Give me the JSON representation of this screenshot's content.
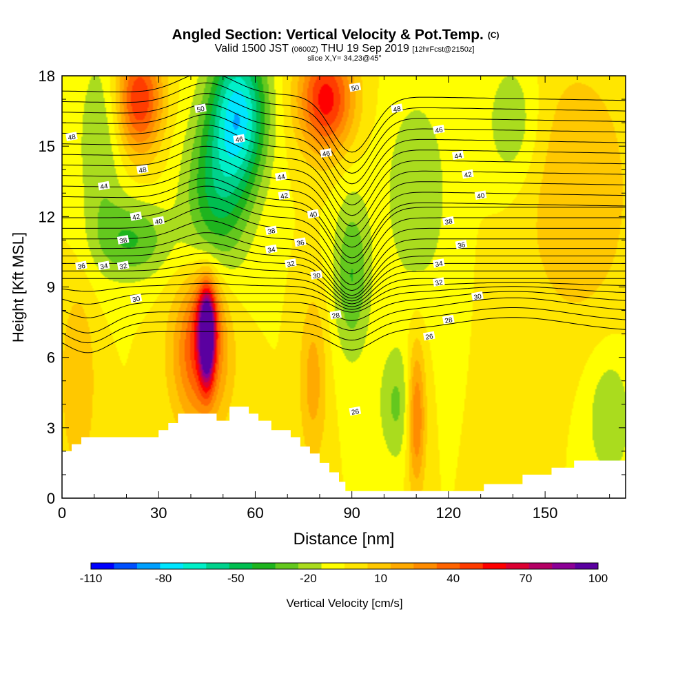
{
  "chart_data": {
    "type": "heatmap",
    "title": "Angled Section: Vertical Velocity & Pot.Temp.",
    "title_suffix": "(C)",
    "subtitle_valid": "Valid 1500 JST",
    "subtitle_z": "(0600Z)",
    "subtitle_date": "THU 19 Sep 2019",
    "subtitle_fcst": "[12hrFcst@2150z]",
    "slice": "slice X,Y= 34,23@45°",
    "xlabel": "Distance [nm]",
    "ylabel": "Height [Kft MSL]",
    "xlim": [
      0,
      175
    ],
    "ylim": [
      0,
      18
    ],
    "xticks": [
      0,
      30,
      60,
      90,
      120,
      150
    ],
    "yticks": [
      0,
      3,
      6,
      9,
      12,
      15,
      18
    ],
    "colorbar": {
      "label": "Vertical Velocity [cm/s]",
      "ticks": [
        -110,
        -80,
        -50,
        -20,
        10,
        40,
        70,
        100
      ],
      "bins": [
        -110,
        -100,
        -90,
        -80,
        -70,
        -60,
        -50,
        -40,
        -30,
        -20,
        -10,
        0,
        10,
        20,
        30,
        40,
        50,
        60,
        70,
        80,
        90,
        100
      ],
      "colors": [
        "#0000ff",
        "#0050ff",
        "#00a0ff",
        "#00e6ff",
        "#00f0c8",
        "#00d28c",
        "#00be50",
        "#1eb41e",
        "#64c81e",
        "#aadc1e",
        "#ffff00",
        "#ffe600",
        "#ffc800",
        "#ffaa00",
        "#ff8c00",
        "#ff6400",
        "#ff3c00",
        "#ff0000",
        "#dc0032",
        "#b40064",
        "#8c0096",
        "#5a00a0"
      ]
    },
    "velocity_features": [
      {
        "x": 45,
        "y": 6.8,
        "value": 100,
        "sx": 1.6,
        "sy": 1.3
      },
      {
        "x": 43,
        "y": 6.2,
        "value": 55,
        "sx": 6,
        "sy": 2.2
      },
      {
        "x": 45,
        "y": 8,
        "value": 30,
        "sx": 3,
        "sy": 1.2
      },
      {
        "x": 110,
        "y": 3.5,
        "value": 45,
        "sx": 2,
        "sy": 2.2
      },
      {
        "x": 104,
        "y": 4,
        "value": -22,
        "sx": 4,
        "sy": 1.8
      },
      {
        "x": 24,
        "y": 17,
        "value": 60,
        "sx": 5,
        "sy": 1.6
      },
      {
        "x": 82,
        "y": 17,
        "value": 65,
        "sx": 6,
        "sy": 1.6
      },
      {
        "x": 55,
        "y": 16.5,
        "value": -70,
        "sx": 6,
        "sy": 2.2
      },
      {
        "x": 48,
        "y": 13,
        "value": -40,
        "sx": 7,
        "sy": 2.5
      },
      {
        "x": 22,
        "y": 11,
        "value": -30,
        "sx": 8,
        "sy": 1.2
      },
      {
        "x": 12,
        "y": 15,
        "value": -20,
        "sx": 5,
        "sy": 3
      },
      {
        "x": 90,
        "y": 9.5,
        "value": -30,
        "sx": 4,
        "sy": 2.5
      },
      {
        "x": 110,
        "y": 13,
        "value": -20,
        "sx": 7,
        "sy": 3
      },
      {
        "x": 140,
        "y": 16,
        "value": -20,
        "sx": 6,
        "sy": 2
      },
      {
        "x": 170,
        "y": 3.5,
        "value": -20,
        "sx": 5,
        "sy": 2
      },
      {
        "x": 78,
        "y": 5,
        "value": 25,
        "sx": 3,
        "sy": 2.5
      },
      {
        "x": 160,
        "y": 13,
        "value": 20,
        "sx": 12,
        "sy": 4
      },
      {
        "x": 5,
        "y": 5,
        "value": 20,
        "sx": 4,
        "sy": 3
      }
    ],
    "terrain": [
      [
        0,
        2
      ],
      [
        3,
        2
      ],
      [
        3,
        2.3
      ],
      [
        6,
        2.3
      ],
      [
        6,
        2.6
      ],
      [
        10,
        2.6
      ],
      [
        10,
        2.6
      ],
      [
        30,
        2.6
      ],
      [
        30,
        2.9
      ],
      [
        33,
        2.9
      ],
      [
        33,
        3.2
      ],
      [
        36,
        3.2
      ],
      [
        36,
        3.6
      ],
      [
        48,
        3.6
      ],
      [
        48,
        3.3
      ],
      [
        52,
        3.3
      ],
      [
        52,
        3.9
      ],
      [
        58,
        3.9
      ],
      [
        58,
        3.6
      ],
      [
        61,
        3.6
      ],
      [
        61,
        3.3
      ],
      [
        65,
        3.3
      ],
      [
        65,
        2.9
      ],
      [
        71,
        2.9
      ],
      [
        71,
        2.6
      ],
      [
        74,
        2.6
      ],
      [
        74,
        2.2
      ],
      [
        77,
        2.2
      ],
      [
        77,
        1.9
      ],
      [
        80,
        1.9
      ],
      [
        80,
        1.5
      ],
      [
        83,
        1.5
      ],
      [
        83,
        1.1
      ],
      [
        86,
        1.1
      ],
      [
        86,
        0.7
      ],
      [
        88,
        0.7
      ],
      [
        88,
        0.3
      ],
      [
        131,
        0.3
      ],
      [
        131,
        0.6
      ],
      [
        143,
        0.6
      ],
      [
        143,
        1
      ],
      [
        152,
        1
      ],
      [
        152,
        1.3
      ],
      [
        159,
        1.3
      ],
      [
        159,
        1.6
      ],
      [
        175,
        1.6
      ]
    ],
    "isentropes": [
      26,
      27,
      28,
      29,
      30,
      31,
      32,
      33,
      34,
      35,
      36,
      37,
      38,
      39,
      40,
      41,
      42,
      43,
      44,
      45,
      46,
      47,
      48,
      49,
      50,
      51
    ],
    "contour_labels": [
      {
        "text": "48",
        "x": 3,
        "y": 15.4
      },
      {
        "text": "50",
        "x": 43,
        "y": 16.6
      },
      {
        "text": "50",
        "x": 91,
        "y": 17.5
      },
      {
        "text": "48",
        "x": 104,
        "y": 16.6
      },
      {
        "text": "46",
        "x": 117,
        "y": 15.7
      },
      {
        "text": "46",
        "x": 55,
        "y": 15.3
      },
      {
        "text": "46",
        "x": 82,
        "y": 14.7
      },
      {
        "text": "44",
        "x": 123,
        "y": 14.6
      },
      {
        "text": "48",
        "x": 25,
        "y": 14
      },
      {
        "text": "42",
        "x": 126,
        "y": 13.8
      },
      {
        "text": "44",
        "x": 13,
        "y": 13.3
      },
      {
        "text": "44",
        "x": 68,
        "y": 13.7
      },
      {
        "text": "42",
        "x": 69,
        "y": 12.9
      },
      {
        "text": "40",
        "x": 130,
        "y": 12.9
      },
      {
        "text": "42",
        "x": 23,
        "y": 12
      },
      {
        "text": "40",
        "x": 30,
        "y": 11.8
      },
      {
        "text": "40",
        "x": 78,
        "y": 12.1
      },
      {
        "text": "38",
        "x": 120,
        "y": 11.8
      },
      {
        "text": "38",
        "x": 65,
        "y": 11.4
      },
      {
        "text": "38",
        "x": 19,
        "y": 11
      },
      {
        "text": "36",
        "x": 74,
        "y": 10.9
      },
      {
        "text": "36",
        "x": 124,
        "y": 10.8
      },
      {
        "text": "34",
        "x": 65,
        "y": 10.6
      },
      {
        "text": "36",
        "x": 6,
        "y": 9.9
      },
      {
        "text": "34",
        "x": 13,
        "y": 9.9
      },
      {
        "text": "32",
        "x": 19,
        "y": 9.9
      },
      {
        "text": "32",
        "x": 71,
        "y": 10
      },
      {
        "text": "34",
        "x": 117,
        "y": 10
      },
      {
        "text": "30",
        "x": 79,
        "y": 9.5
      },
      {
        "text": "32",
        "x": 117,
        "y": 9.2
      },
      {
        "text": "30",
        "x": 129,
        "y": 8.6
      },
      {
        "text": "30",
        "x": 23,
        "y": 8.5
      },
      {
        "text": "28",
        "x": 85,
        "y": 7.8
      },
      {
        "text": "28",
        "x": 120,
        "y": 7.6
      },
      {
        "text": "26",
        "x": 114,
        "y": 6.9
      },
      {
        "text": "26",
        "x": 91,
        "y": 3.7
      }
    ]
  }
}
